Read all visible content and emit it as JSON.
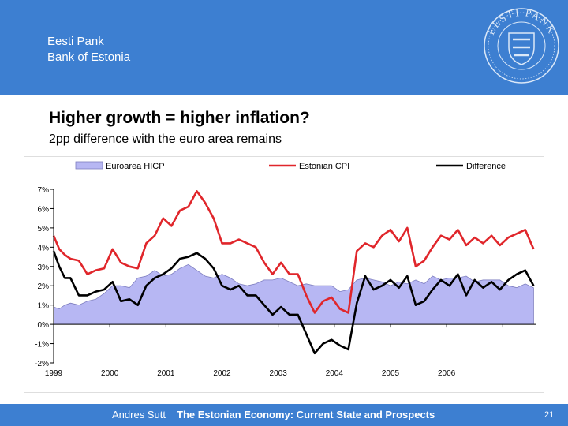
{
  "header": {
    "bank_name_local": "Eesti Pank",
    "bank_name_en": "Bank of Estonia",
    "seal_text": "EESTI PANK",
    "brand_color": "#3d7fd1"
  },
  "slide": {
    "title": "Higher growth = higher inflation?",
    "subtitle": "2pp difference with the euro area remains"
  },
  "footer": {
    "author": "Andres Sutt",
    "title": "The Estonian Economy: Current State and Prospects",
    "page": "21"
  },
  "chart_data": {
    "type": "line",
    "ylim": [
      -2,
      7
    ],
    "yticks": [
      "7%",
      "6%",
      "5%",
      "4%",
      "3%",
      "2%",
      "1%",
      "0%",
      "-1%",
      "-2%"
    ],
    "xlabels": [
      "1999",
      "2000",
      "2001",
      "2002",
      "2003",
      "2004",
      "2005",
      "2006"
    ],
    "xrange": [
      1999.0,
      2007.6
    ],
    "legend": [
      {
        "name": "Euroarea HICP",
        "kind": "area",
        "color": "#b7b7f3"
      },
      {
        "name": "Estonian CPI",
        "kind": "line",
        "color": "#e0262b"
      },
      {
        "name": "Difference",
        "kind": "line",
        "color": "#000000"
      }
    ],
    "series": [
      {
        "name": "Euroarea HICP",
        "color": "#b7b7f3",
        "x": [
          1999.0,
          1999.1,
          1999.2,
          1999.3,
          1999.45,
          1999.6,
          1999.75,
          1999.9,
          2000.05,
          2000.2,
          2000.35,
          2000.5,
          2000.65,
          2000.8,
          2000.95,
          2001.1,
          2001.25,
          2001.4,
          2001.55,
          2001.7,
          2001.85,
          2002.0,
          2002.15,
          2002.3,
          2002.45,
          2002.6,
          2002.75,
          2002.9,
          2003.05,
          2003.2,
          2003.35,
          2003.5,
          2003.65,
          2003.8,
          2003.95,
          2004.1,
          2004.25,
          2004.4,
          2004.55,
          2004.7,
          2004.85,
          2005.0,
          2005.15,
          2005.3,
          2005.45,
          2005.6,
          2005.75,
          2005.9,
          2006.05,
          2006.2,
          2006.35,
          2006.5,
          2006.65,
          2006.8,
          2006.95,
          2007.1,
          2007.25,
          2007.4,
          2007.55
        ],
        "values": [
          0.9,
          0.8,
          1.0,
          1.1,
          1.0,
          1.2,
          1.3,
          1.6,
          2.0,
          2.0,
          1.9,
          2.4,
          2.5,
          2.8,
          2.5,
          2.6,
          2.9,
          3.1,
          2.8,
          2.5,
          2.4,
          2.6,
          2.4,
          2.1,
          2.0,
          2.1,
          2.3,
          2.3,
          2.4,
          2.2,
          2.0,
          2.1,
          2.0,
          2.0,
          2.0,
          1.7,
          1.8,
          2.3,
          2.4,
          2.3,
          2.2,
          2.0,
          2.2,
          2.1,
          2.3,
          2.1,
          2.5,
          2.3,
          2.4,
          2.4,
          2.5,
          2.2,
          2.3,
          2.3,
          2.3,
          2.0,
          1.9,
          2.1,
          1.9
        ]
      },
      {
        "name": "Estonian CPI",
        "color": "#e0262b",
        "x": [
          1999.0,
          1999.1,
          1999.2,
          1999.3,
          1999.45,
          1999.6,
          1999.75,
          1999.9,
          2000.05,
          2000.2,
          2000.35,
          2000.5,
          2000.65,
          2000.8,
          2000.95,
          2001.1,
          2001.25,
          2001.4,
          2001.55,
          2001.7,
          2001.85,
          2002.0,
          2002.15,
          2002.3,
          2002.45,
          2002.6,
          2002.75,
          2002.9,
          2003.05,
          2003.2,
          2003.35,
          2003.5,
          2003.65,
          2003.8,
          2003.95,
          2004.1,
          2004.25,
          2004.4,
          2004.55,
          2004.7,
          2004.85,
          2005.0,
          2005.15,
          2005.3,
          2005.45,
          2005.6,
          2005.75,
          2005.9,
          2006.05,
          2006.2,
          2006.35,
          2006.5,
          2006.65,
          2006.8,
          2006.95,
          2007.1,
          2007.25,
          2007.4,
          2007.55
        ],
        "values": [
          4.6,
          3.9,
          3.6,
          3.4,
          3.3,
          2.6,
          2.8,
          2.9,
          3.9,
          3.2,
          3.0,
          2.9,
          4.2,
          4.6,
          5.5,
          5.1,
          5.9,
          6.1,
          6.9,
          6.3,
          5.5,
          4.2,
          4.2,
          4.4,
          4.2,
          4.0,
          3.2,
          2.6,
          3.2,
          2.6,
          2.6,
          1.5,
          0.6,
          1.2,
          1.4,
          0.8,
          0.6,
          3.8,
          4.2,
          4.0,
          4.6,
          4.9,
          4.3,
          5.0,
          3.0,
          3.3,
          4.0,
          4.6,
          4.4,
          4.9,
          4.1,
          4.5,
          4.2,
          4.6,
          4.1,
          4.5,
          4.7,
          4.9,
          3.9
        ]
      },
      {
        "name": "Difference",
        "color": "#000000",
        "x": [
          1999.0,
          1999.1,
          1999.2,
          1999.3,
          1999.45,
          1999.6,
          1999.75,
          1999.9,
          2000.05,
          2000.2,
          2000.35,
          2000.5,
          2000.65,
          2000.8,
          2000.95,
          2001.1,
          2001.25,
          2001.4,
          2001.55,
          2001.7,
          2001.85,
          2002.0,
          2002.15,
          2002.3,
          2002.45,
          2002.6,
          2002.75,
          2002.9,
          2003.05,
          2003.2,
          2003.35,
          2003.5,
          2003.65,
          2003.8,
          2003.95,
          2004.1,
          2004.25,
          2004.4,
          2004.55,
          2004.7,
          2004.85,
          2005.0,
          2005.15,
          2005.3,
          2005.45,
          2005.6,
          2005.75,
          2005.9,
          2006.05,
          2006.2,
          2006.35,
          2006.5,
          2006.65,
          2006.8,
          2006.95,
          2007.1,
          2007.25,
          2007.4,
          2007.55
        ],
        "values": [
          3.8,
          3.0,
          2.4,
          2.4,
          1.5,
          1.5,
          1.7,
          1.8,
          2.2,
          1.2,
          1.3,
          1.0,
          2.0,
          2.4,
          2.6,
          2.9,
          3.4,
          3.5,
          3.7,
          3.4,
          2.9,
          2.0,
          1.8,
          2.0,
          1.5,
          1.5,
          1.0,
          0.5,
          0.9,
          0.5,
          0.5,
          -0.5,
          -1.5,
          -1.0,
          -0.8,
          -1.1,
          -1.3,
          1.1,
          2.5,
          1.8,
          2.0,
          2.3,
          1.9,
          2.5,
          1.0,
          1.2,
          1.8,
          2.3,
          2.0,
          2.6,
          1.5,
          2.3,
          1.9,
          2.2,
          1.8,
          2.3,
          2.6,
          2.8,
          2.0
        ]
      }
    ]
  }
}
